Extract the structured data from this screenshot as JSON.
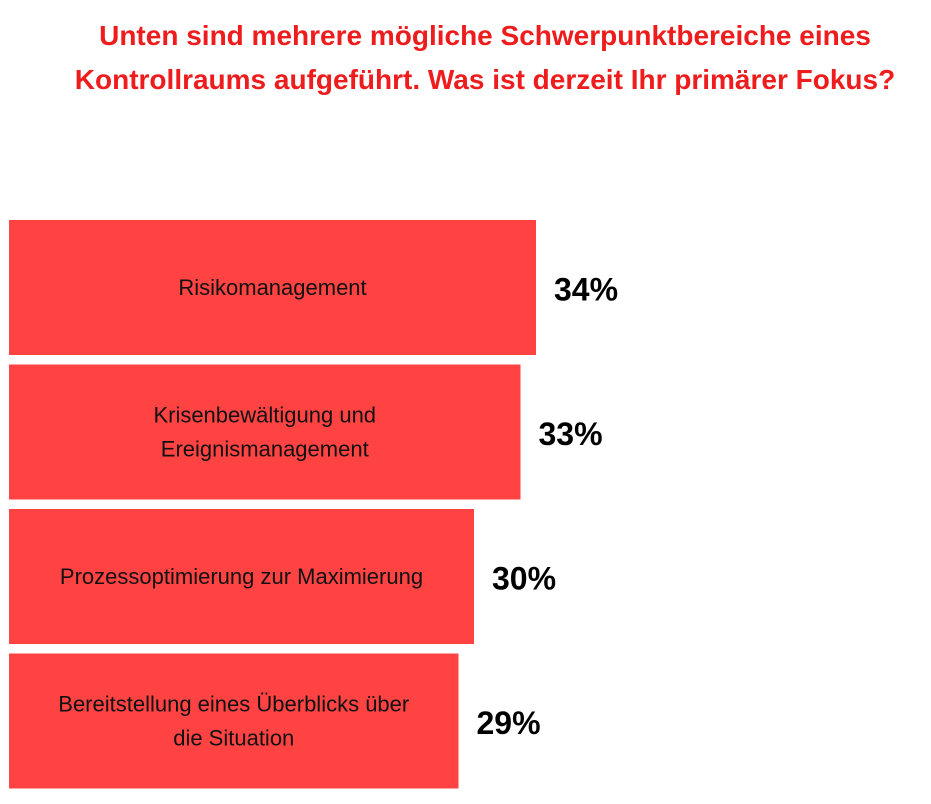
{
  "chart_data": {
    "type": "bar",
    "orientation": "horizontal",
    "title": "Unten sind mehrere mögliche Schwerpunktbereiche eines Kontrollraums aufgeführt. Was ist derzeit Ihr primärer Fokus?",
    "title_color": "#ee1c1c",
    "bar_color": "#ff4343",
    "categories": [
      "Risikomanagement",
      "Krisenbewältigung und Ereignismanagement",
      "Prozessoptimierung zur Maximierung",
      "Bereitstellung eines Überblicks über die Situation"
    ],
    "category_lines": [
      [
        "Risikomanagement"
      ],
      [
        "Krisenbewältigung und",
        "Ereignismanagement"
      ],
      [
        "Prozessoptimierung zur Maximierung"
      ],
      [
        "Bereitstellung eines Überblicks über",
        "die Situation"
      ]
    ],
    "values": [
      34,
      33,
      30,
      29
    ],
    "value_labels": [
      "34%",
      "33%",
      "30%",
      "29%"
    ],
    "unit": "%",
    "grid": false,
    "legend": "none"
  }
}
